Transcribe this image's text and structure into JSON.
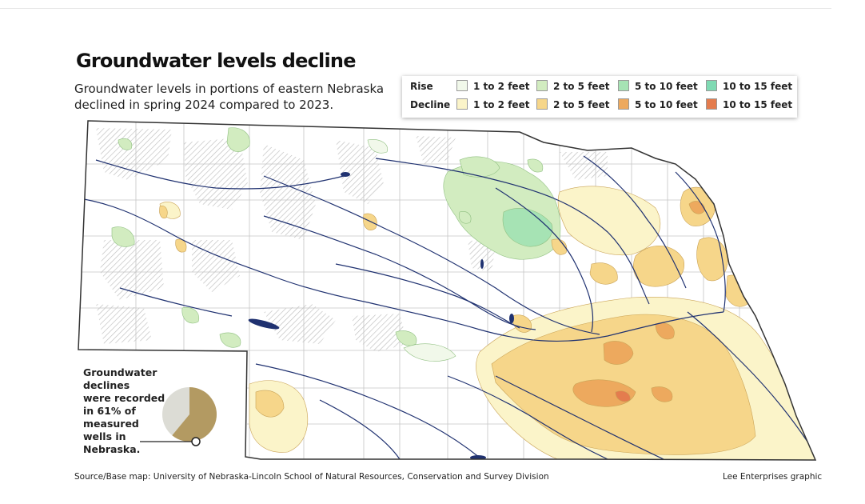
{
  "title": "Groundwater levels decline",
  "subtitle_lines": [
    "Groundwater levels in portions of eastern Nebraska",
    "declined in spring 2024 compared to 2023."
  ],
  "legend": {
    "rise_label": "Rise",
    "decline_label": "Decline",
    "rise_items": [
      {
        "label": "1 to 2 feet",
        "color": "#f1f8ea"
      },
      {
        "label": "2 to 5 feet",
        "color": "#d2ecc0"
      },
      {
        "label": "5 to 10 feet",
        "color": "#a6e3b4"
      },
      {
        "label": "10 to 15 feet",
        "color": "#7fdab3"
      }
    ],
    "decline_items": [
      {
        "label": "1 to 2 feet",
        "color": "#fbf4c9"
      },
      {
        "label": "2 to 5 feet",
        "color": "#f6d68a"
      },
      {
        "label": "5 to 10 feet",
        "color": "#eda95e"
      },
      {
        "label": "10 to 15 feet",
        "color": "#e47c4e"
      }
    ]
  },
  "callout": {
    "lines": [
      "Groundwater declines",
      "were recorded",
      "in 61% of",
      "measured",
      "wells in",
      "Nebraska."
    ],
    "decline_percent": 61,
    "decline_color": "#b39a62",
    "other_color": "#dcdcd5"
  },
  "colors": {
    "river": "#1f3170",
    "state_border": "#333333",
    "county_line": "#bfbfbf",
    "hatch": "#bdbdbd"
  },
  "source": "Source/Base map: University of Nebraska-Lincoln School of Natural Resources, Conservation and Survey Division",
  "credit": "Lee Enterprises graphic"
}
